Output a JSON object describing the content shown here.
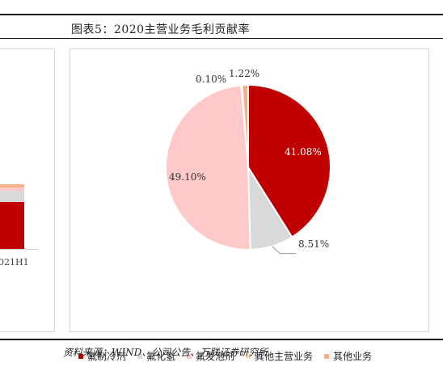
{
  "title": "图表5：2020主营业务毛利贡献率",
  "left_panel": {
    "tick_label": "021H1"
  },
  "source": "资料来源：WIND、公司公告、万联证券研究所",
  "chart_data": {
    "type": "pie",
    "title": "",
    "slices": [
      {
        "name": "氟制冷剂",
        "value": 41.08,
        "label": "41.08%",
        "color": "#c00000"
      },
      {
        "name": "氟化氢",
        "value": 8.51,
        "label": "8.51%",
        "color": "#d9d9d9"
      },
      {
        "name": "氟发泡剂",
        "value": 49.1,
        "label": "49.10%",
        "color": "#ffc9c9"
      },
      {
        "name": "其他主营业务",
        "value": 0.1,
        "label": "0.10%",
        "color": "#fde9c8"
      },
      {
        "name": "其他业务",
        "value": 1.22,
        "label": "1.22%",
        "color": "#f4b183"
      }
    ],
    "legend_position": "bottom"
  }
}
